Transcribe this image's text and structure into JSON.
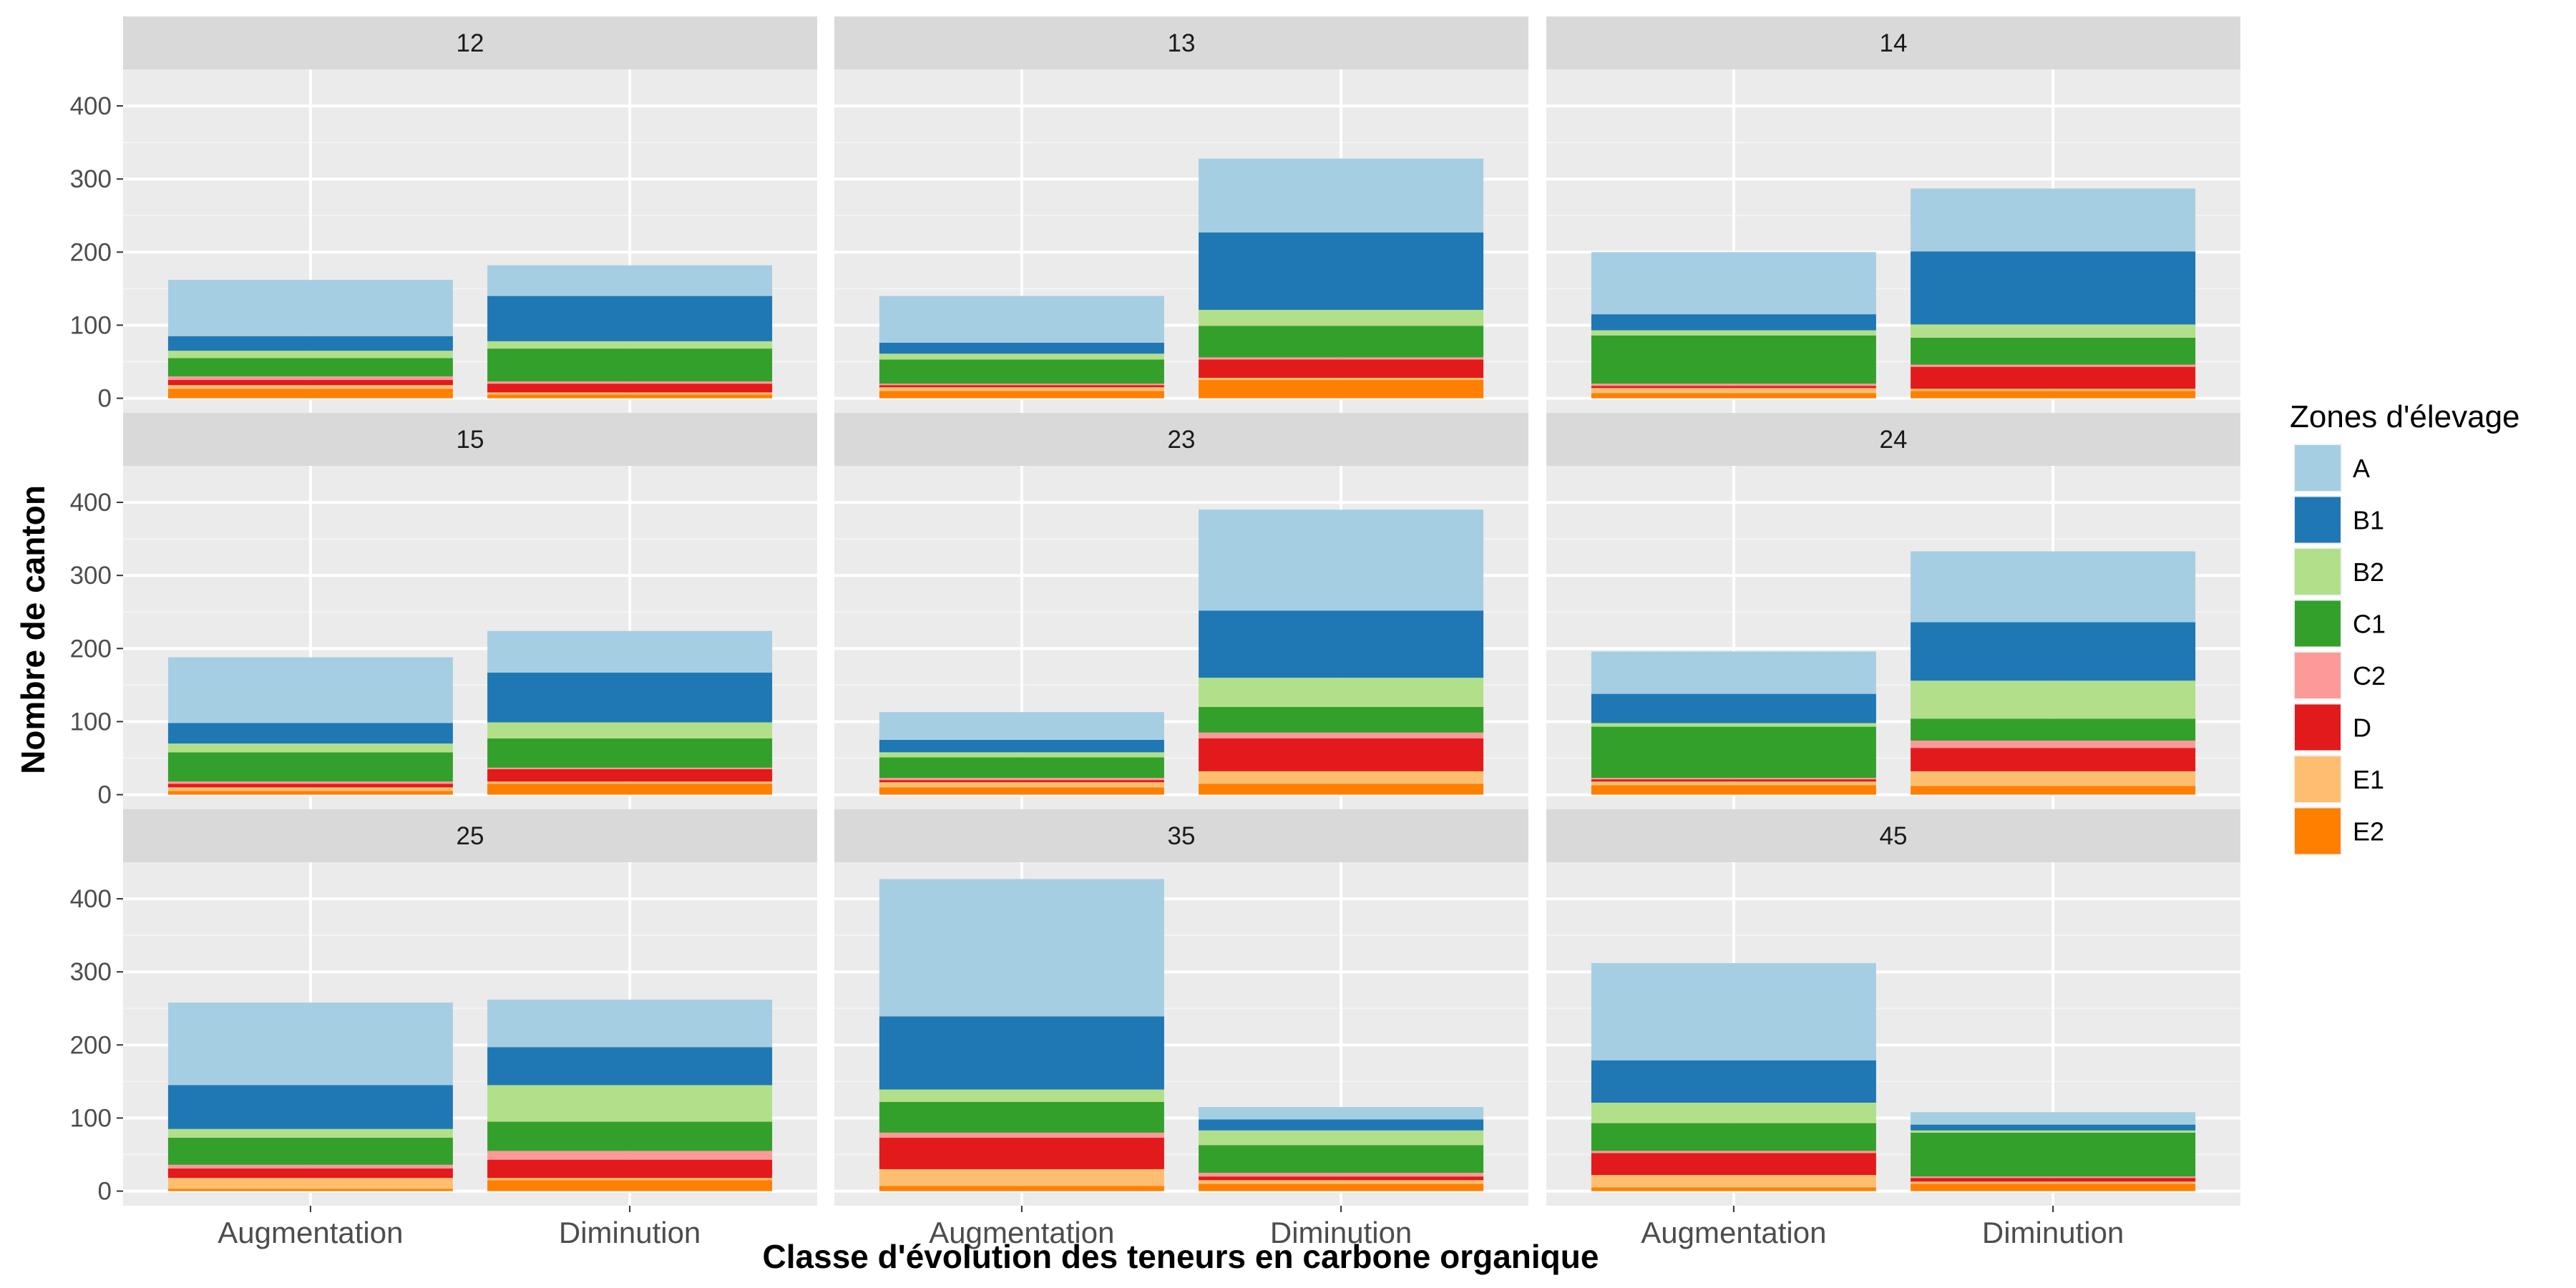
{
  "chart_data": {
    "type": "bar",
    "stacked": true,
    "facets": [
      "12",
      "13",
      "14",
      "15",
      "23",
      "24",
      "25",
      "35",
      "45"
    ],
    "categories": [
      "Augmentation",
      "Diminution"
    ],
    "xlabel": "Classe d'évolution des teneurs en carbone organique",
    "ylabel": "Nombre de canton",
    "ylim": [
      -20,
      450
    ],
    "yticks": [
      0,
      100,
      200,
      300,
      400
    ],
    "legend": {
      "title": "Zones d'élevage",
      "position": "right"
    },
    "zones": [
      {
        "name": "E2",
        "color": "#FF7F00"
      },
      {
        "name": "E1",
        "color": "#FDBF6F"
      },
      {
        "name": "D",
        "color": "#E31A1C"
      },
      {
        "name": "C2",
        "color": "#FB9A99"
      },
      {
        "name": "C1",
        "color": "#33A02C"
      },
      {
        "name": "B2",
        "color": "#B2DF8A"
      },
      {
        "name": "B1",
        "color": "#1F78B4"
      },
      {
        "name": "A",
        "color": "#A6CEE3"
      }
    ],
    "legend_order": [
      "A",
      "B1",
      "B2",
      "C1",
      "C2",
      "D",
      "E1",
      "E2"
    ],
    "panels": [
      {
        "facet": "12",
        "values": {
          "Augmentation": {
            "E2": 13,
            "E1": 5,
            "D": 7,
            "C2": 5,
            "C1": 25,
            "B2": 10,
            "B1": 20,
            "A": 77
          },
          "Diminution": {
            "E2": 5,
            "E1": 3,
            "D": 12,
            "C2": 3,
            "C1": 45,
            "B2": 10,
            "B1": 62,
            "A": 42
          }
        }
      },
      {
        "facet": "13",
        "values": {
          "Augmentation": {
            "E2": 10,
            "E1": 5,
            "D": 3,
            "C2": 2,
            "C1": 33,
            "B2": 8,
            "B1": 15,
            "A": 64
          },
          "Diminution": {
            "E2": 25,
            "E1": 3,
            "D": 25,
            "C2": 3,
            "C1": 43,
            "B2": 22,
            "B1": 106,
            "A": 101
          }
        }
      },
      {
        "facet": "14",
        "values": {
          "Augmentation": {
            "E2": 7,
            "E1": 7,
            "D": 3,
            "C2": 3,
            "C1": 66,
            "B2": 7,
            "B1": 22,
            "A": 85
          },
          "Diminution": {
            "E2": 10,
            "E1": 3,
            "D": 30,
            "C2": 3,
            "C1": 37,
            "B2": 18,
            "B1": 100,
            "A": 86
          }
        }
      },
      {
        "facet": "15",
        "values": {
          "Augmentation": {
            "E2": 5,
            "E1": 5,
            "D": 5,
            "C2": 3,
            "C1": 40,
            "B2": 12,
            "B1": 28,
            "A": 90
          },
          "Diminution": {
            "E2": 15,
            "E1": 3,
            "D": 17,
            "C2": 2,
            "C1": 40,
            "B2": 22,
            "B1": 68,
            "A": 57
          }
        }
      },
      {
        "facet": "23",
        "values": {
          "Augmentation": {
            "E2": 10,
            "E1": 7,
            "D": 3,
            "C2": 3,
            "C1": 28,
            "B2": 7,
            "B1": 17,
            "A": 38
          },
          "Diminution": {
            "E2": 15,
            "E1": 17,
            "D": 45,
            "C2": 8,
            "C1": 35,
            "B2": 40,
            "B1": 92,
            "A": 138
          }
        }
      },
      {
        "facet": "24",
        "values": {
          "Augmentation": {
            "E2": 13,
            "E1": 5,
            "D": 3,
            "C2": 2,
            "C1": 70,
            "B2": 5,
            "B1": 40,
            "A": 58
          },
          "Diminution": {
            "E2": 12,
            "E1": 20,
            "D": 32,
            "C2": 10,
            "C1": 30,
            "B2": 52,
            "B1": 80,
            "A": 97
          }
        }
      },
      {
        "facet": "25",
        "values": {
          "Augmentation": {
            "E2": 3,
            "E1": 15,
            "D": 13,
            "C2": 5,
            "C1": 37,
            "B2": 12,
            "B1": 60,
            "A": 113
          },
          "Diminution": {
            "E2": 15,
            "E1": 3,
            "D": 25,
            "C2": 12,
            "C1": 40,
            "B2": 50,
            "B1": 52,
            "A": 65
          }
        }
      },
      {
        "facet": "35",
        "values": {
          "Augmentation": {
            "E2": 7,
            "E1": 23,
            "D": 43,
            "C2": 7,
            "C1": 42,
            "B2": 17,
            "B1": 100,
            "A": 188
          },
          "Diminution": {
            "E2": 10,
            "E1": 5,
            "D": 5,
            "C2": 5,
            "C1": 38,
            "B2": 20,
            "B1": 15,
            "A": 17
          }
        }
      },
      {
        "facet": "45",
        "values": {
          "Augmentation": {
            "E2": 5,
            "E1": 17,
            "D": 30,
            "C2": 3,
            "C1": 38,
            "B2": 28,
            "B1": 58,
            "A": 133
          },
          "Diminution": {
            "E2": 10,
            "E1": 3,
            "D": 5,
            "C2": 2,
            "C1": 60,
            "B2": 3,
            "B1": 8,
            "A": 17
          }
        }
      }
    ]
  }
}
